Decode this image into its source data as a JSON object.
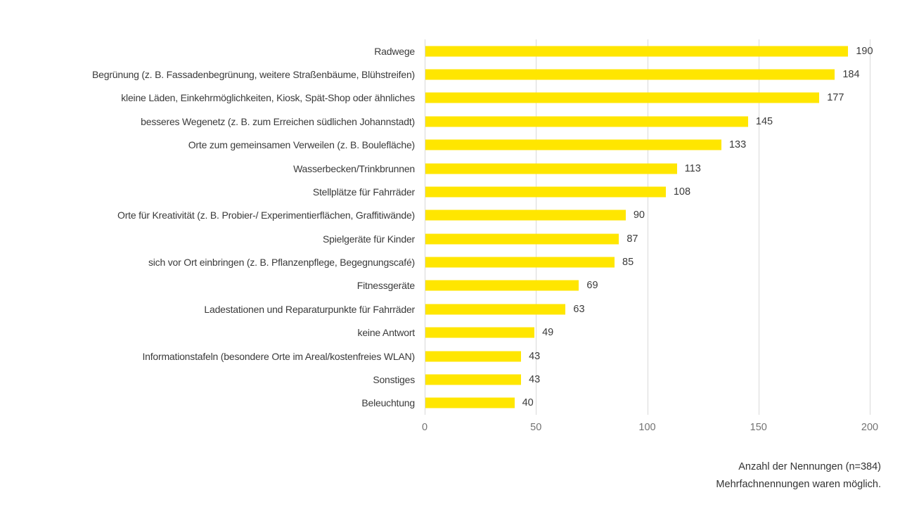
{
  "colors": {
    "bar": "#FFE600",
    "gridline": "#D9D9D9",
    "category_text": "#3A3A3A",
    "value_text": "#3A3A3A",
    "tick_text": "#737373",
    "footer_text": "#333333",
    "background": "#FFFFFF"
  },
  "chart_data": {
    "type": "bar",
    "orientation": "horizontal",
    "title": "",
    "xlabel": "",
    "ylabel": "",
    "categories": [
      "Radwege",
      "Begrünung (z. B. Fassadenbegrünung, weitere Straßenbäume, Blühstreifen)",
      "kleine Läden, Einkehrmöglichkeiten, Kiosk, Spät-Shop oder ähnliches",
      "besseres Wegenetz (z. B. zum Erreichen südlichen Johannstadt)",
      "Orte zum gemeinsamen Verweilen (z. B. Boulefläche)",
      "Wasserbecken/Trinkbrunnen",
      "Stellplätze für Fahrräder",
      "Orte für Kreativität (z. B. Probier-/ Experimentierflächen, Graffitiwände)",
      "Spielgeräte für Kinder",
      "sich vor Ort einbringen (z. B. Pflanzenpflege, Begegnungscafé)",
      "Fitnessgeräte",
      "Ladestationen und Reparaturpunkte für Fahrräder",
      "keine Antwort",
      "Informationstafeln (besondere Orte im Areal/kostenfreies WLAN)",
      "Sonstiges",
      "Beleuchtung"
    ],
    "values": [
      190,
      184,
      177,
      145,
      133,
      113,
      108,
      90,
      87,
      85,
      69,
      63,
      49,
      43,
      43,
      40
    ],
    "xlim": [
      0,
      200
    ],
    "x_ticks": [
      0,
      50,
      100,
      150,
      200
    ],
    "grid": true,
    "data_labels": true,
    "legend": false
  },
  "footer": {
    "line1": "Anzahl der Nennungen (n=384)",
    "line2": "Mehrfachnennungen waren möglich."
  }
}
